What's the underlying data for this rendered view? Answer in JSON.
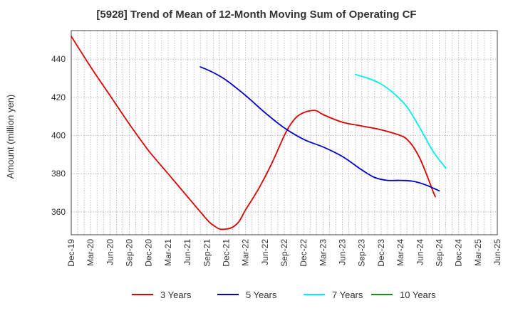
{
  "chart_data": {
    "type": "line",
    "title": "[5928]  Trend of Mean of 12-Month Moving Sum of Operating CF",
    "xlabel": "",
    "ylabel": "Amount (million yen)",
    "ylim": [
      348,
      455
    ],
    "yticks": [
      360,
      380,
      400,
      420,
      440
    ],
    "x_range": [
      0,
      66
    ],
    "x_ticks": [
      {
        "label": "Dec-19",
        "x": 0
      },
      {
        "label": "Mar-20",
        "x": 3
      },
      {
        "label": "Jun-20",
        "x": 6
      },
      {
        "label": "Sep-20",
        "x": 9
      },
      {
        "label": "Dec-20",
        "x": 12
      },
      {
        "label": "Mar-21",
        "x": 15
      },
      {
        "label": "Jun-21",
        "x": 18
      },
      {
        "label": "Sep-21",
        "x": 21
      },
      {
        "label": "Dec-21",
        "x": 24
      },
      {
        "label": "Mar-22",
        "x": 27
      },
      {
        "label": "Jun-22",
        "x": 30
      },
      {
        "label": "Sep-22",
        "x": 33
      },
      {
        "label": "Dec-22",
        "x": 36
      },
      {
        "label": "Mar-23",
        "x": 39
      },
      {
        "label": "Jun-23",
        "x": 42
      },
      {
        "label": "Sep-23",
        "x": 45
      },
      {
        "label": "Dec-23",
        "x": 48
      },
      {
        "label": "Mar-24",
        "x": 51
      },
      {
        "label": "Jun-24",
        "x": 54
      },
      {
        "label": "Sep-24",
        "x": 57
      },
      {
        "label": "Dec-24",
        "x": 60
      },
      {
        "label": "Mar-25",
        "x": 63
      },
      {
        "label": "Jun-25",
        "x": 66
      }
    ],
    "grid": true,
    "legend_position": "bottom",
    "series": [
      {
        "name": "3 Years",
        "color": "#dd0000",
        "points": [
          [
            0,
            452
          ],
          [
            3,
            436
          ],
          [
            6,
            421
          ],
          [
            9,
            406
          ],
          [
            12,
            392
          ],
          [
            15,
            380
          ],
          [
            18,
            368
          ],
          [
            21,
            356
          ],
          [
            22,
            353
          ],
          [
            23,
            351
          ],
          [
            24,
            351
          ],
          [
            25,
            352
          ],
          [
            26,
            355
          ],
          [
            27,
            361
          ],
          [
            29,
            372
          ],
          [
            31,
            385
          ],
          [
            33,
            400
          ],
          [
            34,
            406
          ],
          [
            35,
            410
          ],
          [
            36,
            412
          ],
          [
            37,
            413
          ],
          [
            38,
            413
          ],
          [
            39,
            411
          ],
          [
            42,
            407
          ],
          [
            45,
            405
          ],
          [
            48,
            403
          ],
          [
            51,
            400
          ],
          [
            52,
            398
          ],
          [
            53,
            394
          ],
          [
            54,
            388
          ],
          [
            55,
            380
          ],
          [
            56,
            371
          ],
          [
            56.4,
            368
          ]
        ]
      },
      {
        "name": "5 Years",
        "color": "#0000cc",
        "points": [
          [
            20,
            436
          ],
          [
            22,
            433
          ],
          [
            24,
            429
          ],
          [
            27,
            421
          ],
          [
            30,
            412
          ],
          [
            33,
            404
          ],
          [
            36,
            398
          ],
          [
            39,
            394
          ],
          [
            42,
            389
          ],
          [
            45,
            382
          ],
          [
            47,
            378
          ],
          [
            49,
            376.5
          ],
          [
            51,
            376.5
          ],
          [
            53,
            376
          ],
          [
            55,
            374
          ],
          [
            57,
            371
          ]
        ]
      },
      {
        "name": "7 Years",
        "color": "#00eeee",
        "points": [
          [
            44,
            432
          ],
          [
            46,
            430
          ],
          [
            48,
            427
          ],
          [
            50,
            422
          ],
          [
            52,
            415
          ],
          [
            54,
            404
          ],
          [
            56,
            392
          ],
          [
            58,
            383
          ]
        ]
      },
      {
        "name": "10 Years",
        "color": "#228b22",
        "points": []
      }
    ]
  }
}
